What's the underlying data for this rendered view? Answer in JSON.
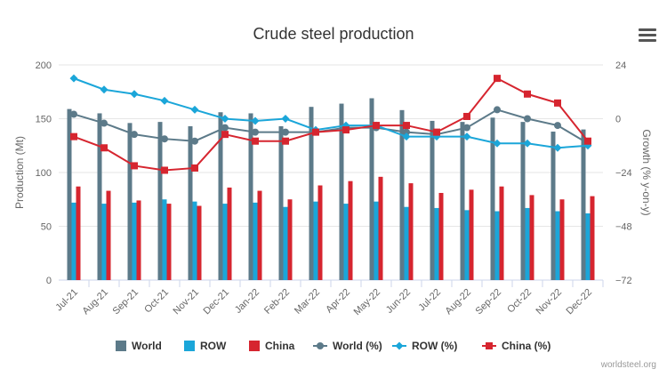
{
  "chart_data": {
    "type": "bar",
    "title": "Crude steel production",
    "ylabel": "Production (Mt)",
    "y2label": "Growth (% y-on-y)",
    "ylim": [
      0,
      200
    ],
    "y2lim": [
      -72,
      24
    ],
    "yticks": [
      "0",
      "50",
      "100",
      "150",
      "200"
    ],
    "y2ticks": [
      "−72",
      "−48",
      "−24",
      "0",
      "24"
    ],
    "categories": [
      "Jul-21",
      "Aug-21",
      "Sep-21",
      "Oct-21",
      "Nov-21",
      "Dec-21",
      "Jan-22",
      "Feb-22",
      "Mar-22",
      "Apr-22",
      "May-22",
      "Jun-22",
      "Jul-22",
      "Aug-22",
      "Sep-22",
      "Oct-22",
      "Nov-22",
      "Dec-22"
    ],
    "bar_series": [
      {
        "name": "World",
        "color": "#5c7a89",
        "values": [
          159,
          155,
          146,
          147,
          143,
          156,
          155,
          143,
          161,
          164,
          169,
          158,
          148,
          147,
          151,
          147,
          138,
          140
        ]
      },
      {
        "name": "ROW",
        "color": "#1ba6d9",
        "values": [
          72,
          71,
          72,
          75,
          73,
          71,
          72,
          68,
          73,
          71,
          73,
          68,
          67,
          65,
          64,
          67,
          64,
          62
        ]
      },
      {
        "name": "China",
        "color": "#d6252f",
        "values": [
          87,
          83,
          74,
          71,
          69,
          86,
          83,
          75,
          88,
          92,
          96,
          90,
          81,
          84,
          87,
          79,
          75,
          78
        ]
      }
    ],
    "line_series": [
      {
        "name": "World (%)",
        "color": "#5c7a89",
        "marker": "circle",
        "values": [
          2,
          -2,
          -7,
          -9,
          -10,
          -4,
          -6,
          -6,
          -6,
          -4,
          -4,
          -6,
          -7,
          -4,
          4,
          0,
          -3,
          -11
        ]
      },
      {
        "name": "ROW (%)",
        "color": "#1ba6d9",
        "marker": "diamond",
        "values": [
          18,
          13,
          11,
          8,
          4,
          0,
          -1,
          0,
          -5,
          -3,
          -3,
          -8,
          -8,
          -8,
          -11,
          -11,
          -13,
          -12
        ]
      },
      {
        "name": "China (%)",
        "color": "#d6252f",
        "marker": "square",
        "values": [
          -8,
          -13,
          -21,
          -23,
          -22,
          -7,
          -10,
          -10,
          -6,
          -5,
          -3,
          -3,
          -6,
          1,
          18,
          11,
          7,
          -10
        ]
      }
    ],
    "legend": [
      "World",
      "ROW",
      "China",
      "World (%)",
      "ROW (%)",
      "China (%)"
    ],
    "legend_position": "bottom"
  },
  "credit": "worldsteel.org"
}
